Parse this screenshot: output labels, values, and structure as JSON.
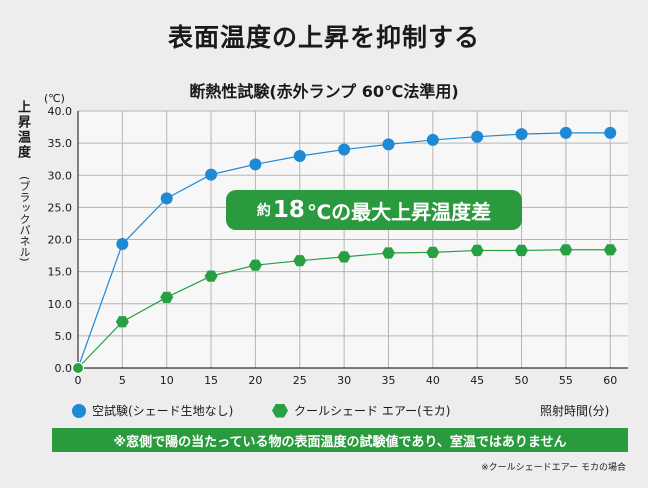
{
  "headline": "表面温度の上昇を抑制する",
  "colors": {
    "blue": "#1e8ad6",
    "green": "#27a043",
    "banner": "#2b9a3e"
  },
  "chart_data": {
    "type": "line",
    "title": "断熱性試験(赤外ランプ 60℃法準用)",
    "unit": "(℃)",
    "ylabel": "上昇温度",
    "ylabel_sub": "(ブラックパネル)",
    "xlabel": "照射時間(分)",
    "x": [
      0,
      5,
      10,
      15,
      20,
      25,
      30,
      35,
      40,
      45,
      50,
      55,
      60
    ],
    "xlim": [
      0,
      62
    ],
    "ylim": [
      0,
      40
    ],
    "x_ticks": [
      "0",
      "5",
      "10",
      "15",
      "20",
      "25",
      "30",
      "35",
      "40",
      "45",
      "50",
      "55",
      "60"
    ],
    "y_ticks": [
      "0.0",
      "5.0",
      "10.0",
      "15.0",
      "20.0",
      "25.0",
      "30.0",
      "35.0",
      "40.0"
    ],
    "grid": true,
    "legend_position": "bottom",
    "series": [
      {
        "name": "空試験(シェード生地なし)",
        "marker": "circle",
        "values": [
          0,
          19.3,
          26.4,
          30.1,
          31.7,
          33.0,
          34.0,
          34.8,
          35.5,
          36.0,
          36.4,
          36.6,
          36.6
        ]
      },
      {
        "name": "クールシェード エアー(モカ)",
        "marker": "hexagon",
        "values": [
          0,
          7.2,
          11.0,
          14.3,
          16.0,
          16.7,
          17.3,
          17.9,
          18.0,
          18.3,
          18.3,
          18.4,
          18.4
        ]
      }
    ],
    "annotation": {
      "prefix": "約",
      "value": "18",
      "suffix": "℃の最大上昇温度差"
    }
  },
  "note": "※窓側で陽の当たっている物の表面温度の試験値であり、室温ではありません",
  "footnote": "※クールシェードエアー モカの場合"
}
